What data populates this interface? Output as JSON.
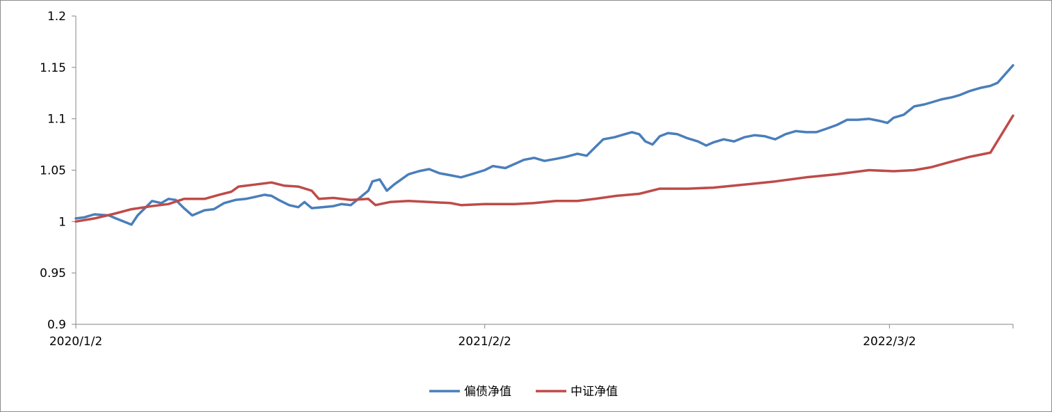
{
  "chart_data": {
    "type": "line",
    "title": "",
    "xlabel": "",
    "ylabel": "",
    "ylim": [
      0.9,
      1.2
    ],
    "y_ticks": [
      "0.9",
      "0.95",
      "1",
      "1.05",
      "1.1",
      "1.15",
      "1.2"
    ],
    "y_tick_values": [
      0.9,
      0.95,
      1.0,
      1.05,
      1.1,
      1.15,
      1.2
    ],
    "x_range": [
      "2020/1/2",
      "2022/6/30"
    ],
    "x_ticks": [
      {
        "date": "2020/1/2",
        "label": "2020/1/2"
      },
      {
        "date": "2021/2/2",
        "label": "2021/2/2"
      },
      {
        "date": "2022/3/2",
        "label": "2022/3/2"
      }
    ],
    "grid": false,
    "legend_position": "bottom",
    "series": [
      {
        "name": "偏债净值",
        "color": "#4a7ebb",
        "points": [
          [
            "2020/1/2",
            1.003
          ],
          [
            "2020/1/10",
            1.004
          ],
          [
            "2020/1/20",
            1.007
          ],
          [
            "2020/2/3",
            1.006
          ],
          [
            "2020/2/10",
            1.003
          ],
          [
            "2020/2/20",
            0.999
          ],
          [
            "2020/2/25",
            0.997
          ],
          [
            "2020/3/2",
            1.006
          ],
          [
            "2020/3/10",
            1.014
          ],
          [
            "2020/3/16",
            1.02
          ],
          [
            "2020/3/25",
            1.018
          ],
          [
            "2020/4/1",
            1.022
          ],
          [
            "2020/4/8",
            1.021
          ],
          [
            "2020/4/16",
            1.013
          ],
          [
            "2020/4/24",
            1.006
          ],
          [
            "2020/5/6",
            1.011
          ],
          [
            "2020/5/15",
            1.012
          ],
          [
            "2020/5/25",
            1.018
          ],
          [
            "2020/6/5",
            1.021
          ],
          [
            "2020/6/15",
            1.022
          ],
          [
            "2020/6/24",
            1.024
          ],
          [
            "2020/7/3",
            1.026
          ],
          [
            "2020/7/10",
            1.025
          ],
          [
            "2020/7/17",
            1.021
          ],
          [
            "2020/7/27",
            1.016
          ],
          [
            "2020/8/5",
            1.014
          ],
          [
            "2020/8/11",
            1.019
          ],
          [
            "2020/8/18",
            1.013
          ],
          [
            "2020/8/28",
            1.014
          ],
          [
            "2020/9/8",
            1.015
          ],
          [
            "2020/9/16",
            1.017
          ],
          [
            "2020/9/25",
            1.016
          ],
          [
            "2020/10/12",
            1.03
          ],
          [
            "2020/10/16",
            1.039
          ],
          [
            "2020/10/23",
            1.041
          ],
          [
            "2020/10/30",
            1.03
          ],
          [
            "2020/11/6",
            1.036
          ],
          [
            "2020/11/13",
            1.041
          ],
          [
            "2020/11/20",
            1.046
          ],
          [
            "2020/11/30",
            1.049
          ],
          [
            "2020/12/10",
            1.051
          ],
          [
            "2020/12/20",
            1.047
          ],
          [
            "2020/12/31",
            1.045
          ],
          [
            "2021/1/10",
            1.043
          ],
          [
            "2021/1/20",
            1.046
          ],
          [
            "2021/2/2",
            1.05
          ],
          [
            "2021/2/10",
            1.054
          ],
          [
            "2021/2/22",
            1.052
          ],
          [
            "2021/3/3",
            1.056
          ],
          [
            "2021/3/12",
            1.06
          ],
          [
            "2021/3/22",
            1.062
          ],
          [
            "2021/4/1",
            1.059
          ],
          [
            "2021/4/12",
            1.061
          ],
          [
            "2021/4/22",
            1.063
          ],
          [
            "2021/5/3",
            1.066
          ],
          [
            "2021/5/12",
            1.064
          ],
          [
            "2021/5/20",
            1.072
          ],
          [
            "2021/5/28",
            1.08
          ],
          [
            "2021/6/8",
            1.082
          ],
          [
            "2021/6/18",
            1.085
          ],
          [
            "2021/6/25",
            1.087
          ],
          [
            "2021/7/2",
            1.085
          ],
          [
            "2021/7/8",
            1.078
          ],
          [
            "2021/7/15",
            1.075
          ],
          [
            "2021/7/22",
            1.083
          ],
          [
            "2021/7/30",
            1.086
          ],
          [
            "2021/8/8",
            1.085
          ],
          [
            "2021/8/18",
            1.081
          ],
          [
            "2021/8/28",
            1.078
          ],
          [
            "2021/9/5",
            1.074
          ],
          [
            "2021/9/12",
            1.077
          ],
          [
            "2021/9/22",
            1.08
          ],
          [
            "2021/10/2",
            1.078
          ],
          [
            "2021/10/12",
            1.082
          ],
          [
            "2021/10/22",
            1.084
          ],
          [
            "2021/11/1",
            1.083
          ],
          [
            "2021/11/11",
            1.08
          ],
          [
            "2021/11/21",
            1.085
          ],
          [
            "2021/12/1",
            1.088
          ],
          [
            "2021/12/11",
            1.087
          ],
          [
            "2021/12/21",
            1.087
          ],
          [
            "2021/12/30",
            1.09
          ],
          [
            "2022/1/10",
            1.094
          ],
          [
            "2022/1/20",
            1.099
          ],
          [
            "2022/1/30",
            1.099
          ],
          [
            "2022/2/10",
            1.1
          ],
          [
            "2022/2/20",
            1.098
          ],
          [
            "2022/2/28",
            1.096
          ],
          [
            "2022/3/6",
            1.101
          ],
          [
            "2022/3/16",
            1.104
          ],
          [
            "2022/3/26",
            1.112
          ],
          [
            "2022/4/5",
            1.114
          ],
          [
            "2022/4/12",
            1.116
          ],
          [
            "2022/4/22",
            1.119
          ],
          [
            "2022/5/2",
            1.121
          ],
          [
            "2022/5/9",
            1.123
          ],
          [
            "2022/5/19",
            1.127
          ],
          [
            "2022/5/29",
            1.13
          ],
          [
            "2022/6/8",
            1.132
          ],
          [
            "2022/6/15",
            1.135
          ],
          [
            "2022/6/30",
            1.152
          ]
        ]
      },
      {
        "name": "中证净值",
        "color": "#be4b48",
        "points": [
          [
            "2020/1/2",
            1.0
          ],
          [
            "2020/1/20",
            1.003
          ],
          [
            "2020/2/10",
            1.008
          ],
          [
            "2020/2/25",
            1.012
          ],
          [
            "2020/3/16",
            1.015
          ],
          [
            "2020/4/1",
            1.017
          ],
          [
            "2020/4/16",
            1.022
          ],
          [
            "2020/5/6",
            1.022
          ],
          [
            "2020/5/20",
            1.026
          ],
          [
            "2020/6/1",
            1.029
          ],
          [
            "2020/6/8",
            1.034
          ],
          [
            "2020/6/24",
            1.036
          ],
          [
            "2020/7/10",
            1.038
          ],
          [
            "2020/7/22",
            1.035
          ],
          [
            "2020/8/5",
            1.034
          ],
          [
            "2020/8/18",
            1.03
          ],
          [
            "2020/8/25",
            1.022
          ],
          [
            "2020/9/8",
            1.023
          ],
          [
            "2020/9/25",
            1.021
          ],
          [
            "2020/10/12",
            1.022
          ],
          [
            "2020/10/19",
            1.016
          ],
          [
            "2020/11/2",
            1.019
          ],
          [
            "2020/11/20",
            1.02
          ],
          [
            "2020/12/10",
            1.019
          ],
          [
            "2020/12/31",
            1.018
          ],
          [
            "2021/1/10",
            1.016
          ],
          [
            "2021/2/2",
            1.017
          ],
          [
            "2021/3/3",
            1.017
          ],
          [
            "2021/3/22",
            1.018
          ],
          [
            "2021/4/12",
            1.02
          ],
          [
            "2021/5/3",
            1.02
          ],
          [
            "2021/5/20",
            1.022
          ],
          [
            "2021/6/10",
            1.025
          ],
          [
            "2021/7/2",
            1.027
          ],
          [
            "2021/7/22",
            1.032
          ],
          [
            "2021/8/18",
            1.032
          ],
          [
            "2021/9/12",
            1.033
          ],
          [
            "2021/10/12",
            1.036
          ],
          [
            "2021/11/11",
            1.039
          ],
          [
            "2021/12/11",
            1.043
          ],
          [
            "2022/1/10",
            1.046
          ],
          [
            "2022/2/10",
            1.05
          ],
          [
            "2022/3/6",
            1.049
          ],
          [
            "2022/3/26",
            1.05
          ],
          [
            "2022/4/12",
            1.053
          ],
          [
            "2022/4/30",
            1.058
          ],
          [
            "2022/5/19",
            1.063
          ],
          [
            "2022/6/8",
            1.067
          ],
          [
            "2022/6/30",
            1.103
          ]
        ]
      }
    ]
  }
}
